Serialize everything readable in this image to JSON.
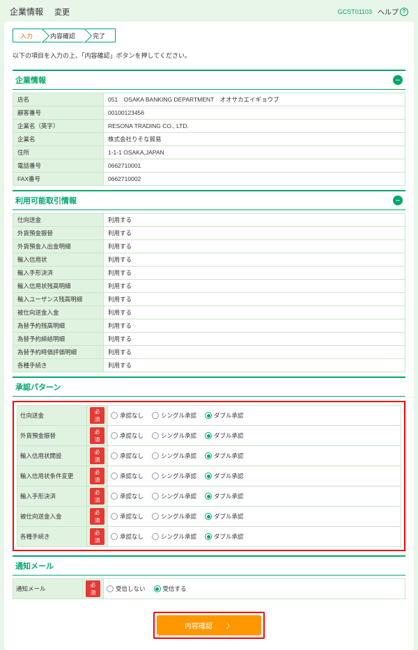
{
  "header": {
    "title": "企業情報",
    "subtitle": "変更",
    "screen_id": "GCST01103",
    "help": "ヘルプ"
  },
  "steps": [
    "入力",
    "内容確認",
    "完了"
  ],
  "intro": "以下の項目を入力の上、「内容確認」ボタンを押してください。",
  "sections": {
    "company": {
      "title": "企業情報",
      "rows": [
        {
          "label": "店名",
          "value": "051　OSAKA BANKING DEPARTMENT　オオサカエイギョウブ"
        },
        {
          "label": "顧客番号",
          "value": "00100123456"
        },
        {
          "label": "企業名（英字）",
          "value": "RESONA TRADING CO., LTD."
        },
        {
          "label": "企業名",
          "value": "株式会社りそな貿易"
        },
        {
          "label": "住所",
          "value": "1-1-1 OSAKA,JAPAN"
        },
        {
          "label": "電話番号",
          "value": "0662710001"
        },
        {
          "label": "FAX番号",
          "value": "0662710002"
        }
      ]
    },
    "transactions": {
      "title": "利用可能取引情報",
      "use_label": "利用する",
      "rows": [
        "仕向送金",
        "外貨預金振替",
        "外貨預金入出金明細",
        "輸入信用状",
        "輸入手形決済",
        "輸入信用状残高明細",
        "輸入ユーザンス残高明細",
        "被仕向送金入金",
        "為替予約残高明細",
        "為替予約締結明細",
        "為替予約時価評価明細",
        "各種手続き"
      ]
    },
    "patterns": {
      "title": "承認パターン",
      "required_label": "必須",
      "options": [
        "承認なし",
        "シングル承認",
        "ダブル承認"
      ],
      "rows": [
        {
          "label": "仕向送金",
          "selected": 2
        },
        {
          "label": "外貨預金振替",
          "selected": 2
        },
        {
          "label": "輸入信用状開設",
          "selected": 2
        },
        {
          "label": "輸入信用状条件変更",
          "selected": 2
        },
        {
          "label": "輸入手形決済",
          "selected": 2
        },
        {
          "label": "被仕向送金入金",
          "selected": 2
        },
        {
          "label": "各種手続き",
          "selected": 2
        }
      ]
    },
    "mail": {
      "title": "通知メール",
      "row_label": "通知メール",
      "required_label": "必須",
      "options": [
        "受信しない",
        "受信する"
      ],
      "selected": 1
    }
  },
  "submit_label": "内容確認"
}
